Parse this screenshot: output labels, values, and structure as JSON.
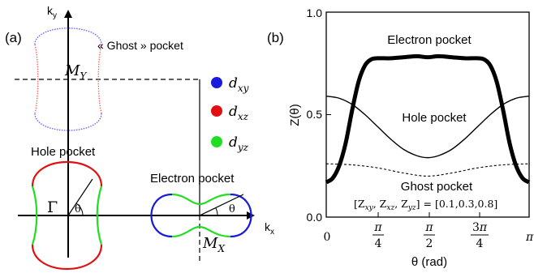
{
  "left_panel": {
    "label": "(a)",
    "ky_label": "k",
    "ky_sub": "y",
    "kx_label": "k",
    "kx_sub": "x",
    "ghost_label": "« Ghost » pocket",
    "my_label": "M",
    "my_sub": "Y",
    "mx_label": "M",
    "mx_sub": "X",
    "hole_label": "Hole pocket",
    "gamma_label": "Γ",
    "theta_label": "θ",
    "electron_label": "Electron pocket",
    "legend": [
      {
        "name": "d",
        "sub": "xy",
        "color": "#1a1adc"
      },
      {
        "name": "d",
        "sub": "xz",
        "color": "#e01010"
      },
      {
        "name": "d",
        "sub": "yz",
        "color": "#22dd22"
      }
    ]
  },
  "right_panel": {
    "label": "(b)",
    "electron_label": "Electron pocket",
    "hole_label": "Hole pocket",
    "ghost_label": "Ghost pocket",
    "param_label": "[Z",
    "param_subs": [
      "xy",
      "xz",
      "yz"
    ],
    "param_values": "] = [0.1,0.3,0.8]",
    "ylabel": "Z(θ)",
    "xlabel": "θ (rad)",
    "yticks": [
      "0.0",
      "0.5",
      "1.0"
    ],
    "xticks": [
      "0",
      "π/4",
      "π/2",
      "3π/4",
      "π"
    ]
  },
  "chart_data": {
    "type": "line",
    "xlabel": "θ (rad)",
    "ylabel": "Z(θ)",
    "xlim": [
      0,
      3.1416
    ],
    "ylim": [
      0,
      1.0
    ],
    "series": [
      {
        "name": "Electron pocket",
        "style": "thick",
        "x": [
          0,
          0.1,
          0.2,
          0.3,
          0.4,
          0.5,
          0.6,
          0.7,
          0.8,
          0.9,
          1.0,
          1.2,
          1.4,
          1.57,
          1.74,
          1.94,
          2.14,
          2.24,
          2.34,
          2.44,
          2.54,
          2.64,
          2.74,
          2.84,
          2.94,
          3.04,
          3.14
        ],
        "y": [
          0.17,
          0.19,
          0.25,
          0.36,
          0.52,
          0.66,
          0.74,
          0.77,
          0.775,
          0.775,
          0.775,
          0.78,
          0.785,
          0.78,
          0.785,
          0.78,
          0.775,
          0.775,
          0.775,
          0.77,
          0.74,
          0.66,
          0.52,
          0.36,
          0.25,
          0.19,
          0.17
        ]
      },
      {
        "name": "Hole pocket",
        "style": "thin",
        "x": [
          0,
          0.2,
          0.4,
          0.6,
          0.8,
          1.0,
          1.2,
          1.4,
          1.57,
          1.74,
          1.94,
          2.14,
          2.34,
          2.54,
          2.74,
          2.94,
          3.14
        ],
        "y": [
          0.59,
          0.58,
          0.55,
          0.5,
          0.44,
          0.38,
          0.33,
          0.3,
          0.29,
          0.3,
          0.33,
          0.38,
          0.44,
          0.5,
          0.55,
          0.58,
          0.59
        ]
      },
      {
        "name": "Ghost pocket",
        "style": "dashed",
        "x": [
          0,
          0.4,
          0.8,
          1.2,
          1.57,
          1.94,
          2.34,
          2.74,
          3.14
        ],
        "y": [
          0.26,
          0.255,
          0.24,
          0.215,
          0.2,
          0.215,
          0.24,
          0.255,
          0.26
        ]
      }
    ]
  }
}
